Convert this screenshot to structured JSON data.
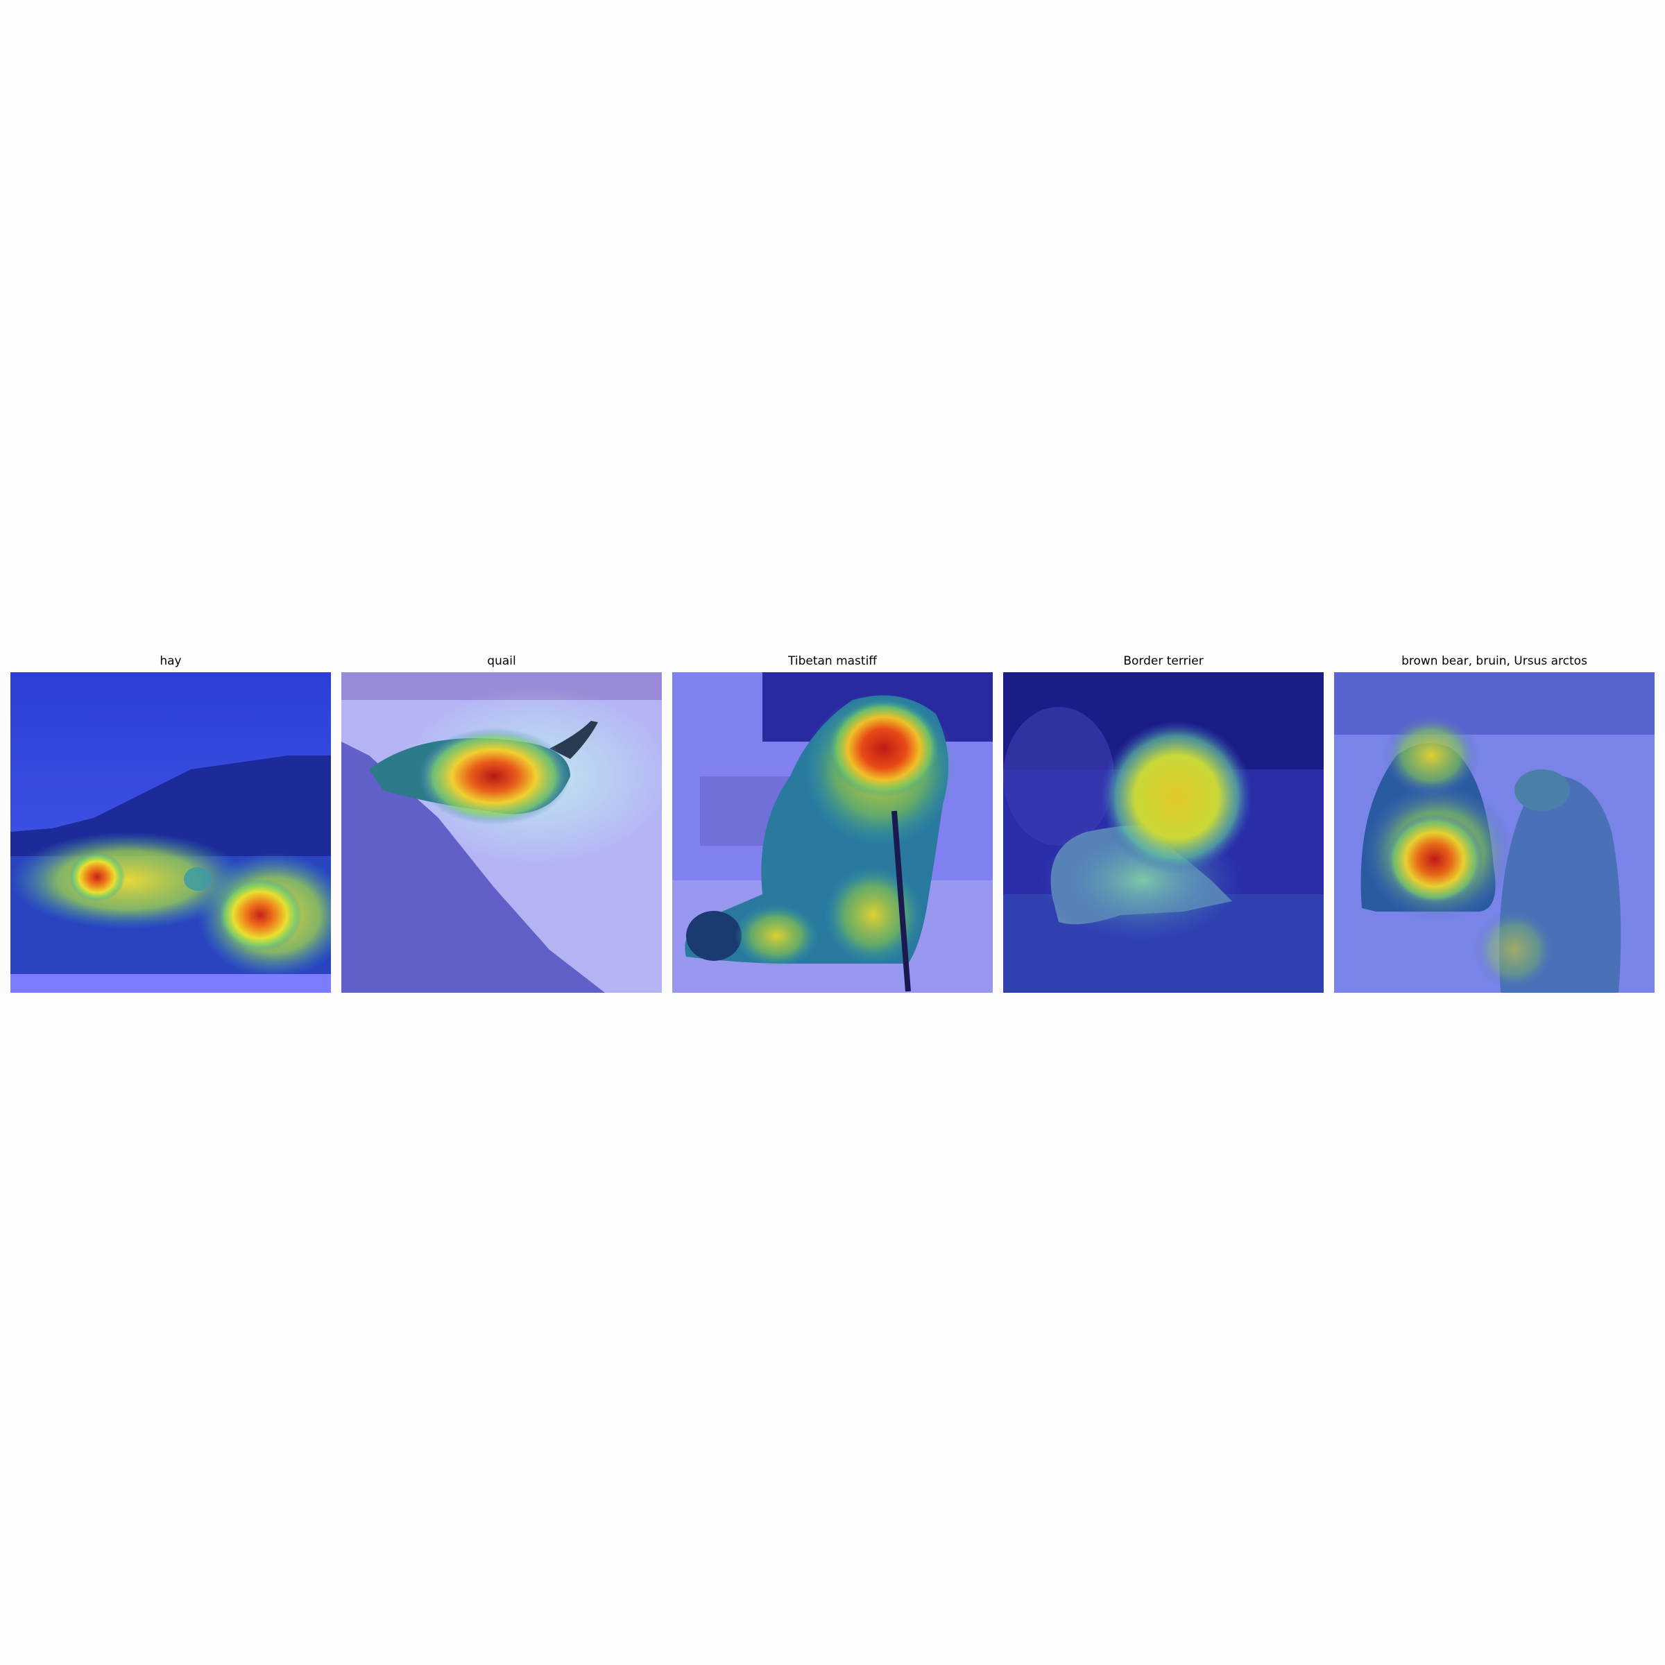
{
  "figure": {
    "panels": [
      {
        "title": "hay"
      },
      {
        "title": "quail"
      },
      {
        "title": "Tibetan mastiff"
      },
      {
        "title": "Border terrier"
      },
      {
        "title": "brown bear, bruin, Ursus arctos"
      }
    ]
  }
}
